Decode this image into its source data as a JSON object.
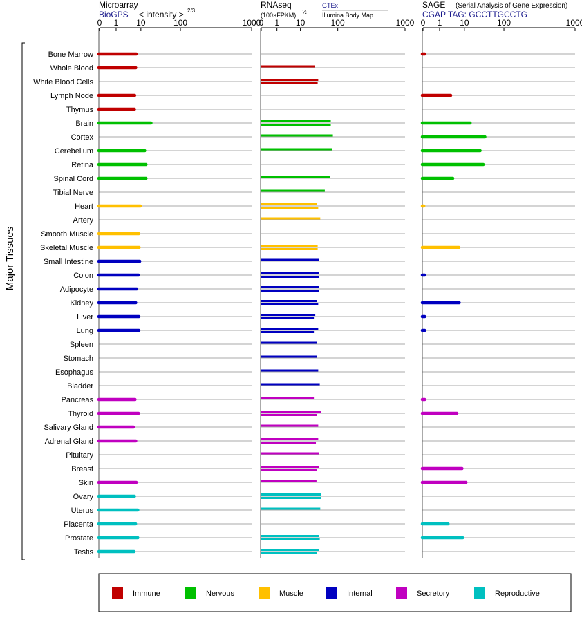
{
  "chart_data": {
    "type": "bar",
    "y_axis_label": "Major Tissues",
    "tissues": [
      "Bone Marrow",
      "Whole Blood",
      "White Blood Cells",
      "Lymph Node",
      "Thymus",
      "Brain",
      "Cortex",
      "Cerebellum",
      "Retina",
      "Spinal Cord",
      "Tibial Nerve",
      "Heart",
      "Artery",
      "Smooth Muscle",
      "Skeletal Muscle",
      "Small Intestine",
      "Colon",
      "Adipocyte",
      "Kidney",
      "Liver",
      "Lung",
      "Spleen",
      "Stomach",
      "Esophagus",
      "Bladder",
      "Pancreas",
      "Thyroid",
      "Salivary Gland",
      "Adrenal Gland",
      "Pituitary",
      "Breast",
      "Skin",
      "Ovary",
      "Uterus",
      "Placenta",
      "Prostate",
      "Testis"
    ],
    "tissue_groups": [
      "Immune",
      "Immune",
      "Immune",
      "Immune",
      "Immune",
      "Nervous",
      "Nervous",
      "Nervous",
      "Nervous",
      "Nervous",
      "Nervous",
      "Muscle",
      "Muscle",
      "Muscle",
      "Muscle",
      "Internal",
      "Internal",
      "Internal",
      "Internal",
      "Internal",
      "Internal",
      "Internal",
      "Internal",
      "Internal",
      "Internal",
      "Secretory",
      "Secretory",
      "Secretory",
      "Secretory",
      "Secretory",
      "Secretory",
      "Secretory",
      "Reproductive",
      "Reproductive",
      "Reproductive",
      "Reproductive",
      "Reproductive"
    ],
    "legend": [
      {
        "name": "Immune",
        "color": "#c00000"
      },
      {
        "name": "Nervous",
        "color": "#00c000"
      },
      {
        "name": "Muscle",
        "color": "#ffc000"
      },
      {
        "name": "Internal",
        "color": "#0000c0"
      },
      {
        "name": "Secretory",
        "color": "#c000c0"
      },
      {
        "name": "Reproductive",
        "color": "#00c0c0"
      }
    ],
    "ticks": [
      0,
      1,
      10,
      100,
      1000
    ],
    "tick_labels": [
      "0",
      "1",
      "10",
      "100",
      "1000"
    ],
    "panels": [
      {
        "title": "Microarray",
        "subtitle": "BioGPS",
        "scale_label": "< intensity >",
        "scale_exponent": "2/3",
        "values": [
          [
            6.5
          ],
          [
            6.2
          ],
          [],
          [
            5.6
          ],
          [
            5.5
          ],
          [
            18
          ],
          [],
          [
            12.5
          ],
          [
            13.5
          ],
          [
            13.5
          ],
          [],
          [
            9.5
          ],
          [],
          [
            8.2
          ],
          [
            8.5
          ],
          [
            9
          ],
          [
            8
          ],
          [
            6.8
          ],
          [
            6.2
          ],
          [
            8.3
          ],
          [
            8.3
          ],
          [],
          [],
          [],
          [],
          [
            5.8
          ],
          [
            8
          ],
          [
            5
          ],
          [
            6.2
          ],
          [],
          [],
          [
            6.5
          ],
          [
            5.5
          ],
          [
            7.5
          ],
          [
            6.1
          ],
          [
            7.5
          ],
          [
            5.3
          ]
        ]
      },
      {
        "title": "RNAseq",
        "subtitle": "(100×FPKM)",
        "subtitle_exponent": "½",
        "source_top": "GTEx",
        "source_bottom": "Illumina Body Map",
        "values": [
          [],
          [
            24
          ],
          [
            30,
            29
          ],
          [],
          [],
          [
            65,
            65
          ],
          [
            74
          ],
          [
            72
          ],
          [],
          [
            63
          ],
          [
            45
          ],
          [
            28,
            30
          ],
          [
            34
          ],
          [],
          [
            29,
            29
          ],
          [
            31
          ],
          [
            32,
            32
          ],
          [
            31,
            31
          ],
          [
            28,
            30
          ],
          [
            25,
            23
          ],
          [
            30,
            23
          ],
          [
            28
          ],
          [
            28
          ],
          [
            30
          ],
          [
            33
          ],
          [
            23
          ],
          [
            35,
            28
          ],
          [
            30
          ],
          [
            30,
            26
          ],
          [
            32
          ],
          [
            32,
            28
          ],
          [
            27
          ],
          [
            35,
            35
          ],
          [
            34
          ],
          [],
          [
            32,
            33
          ],
          [
            31,
            28
          ]
        ]
      },
      {
        "title": "SAGE",
        "title_note": "(Serial Analysis of Gene Expression)",
        "subtitle": "CGAP TAG: GCCTTGCCTG",
        "values": [
          [
            0.1
          ],
          [],
          [],
          [
            2.8
          ],
          [],
          [
            14
          ],
          [
            33
          ],
          [
            25
          ],
          [
            30
          ],
          [
            3.4
          ],
          [],
          [
            0.05
          ],
          [],
          [],
          [
            6
          ],
          [],
          [
            0.1
          ],
          [],
          [
            6.2
          ],
          [
            0.1
          ],
          [
            0.1
          ],
          [],
          [],
          [],
          [],
          [
            0.1
          ],
          [
            5
          ],
          [],
          [],
          [],
          [
            8
          ],
          [
            11
          ],
          [],
          [],
          [
            2.2
          ],
          [
            8.5
          ],
          []
        ]
      }
    ]
  }
}
